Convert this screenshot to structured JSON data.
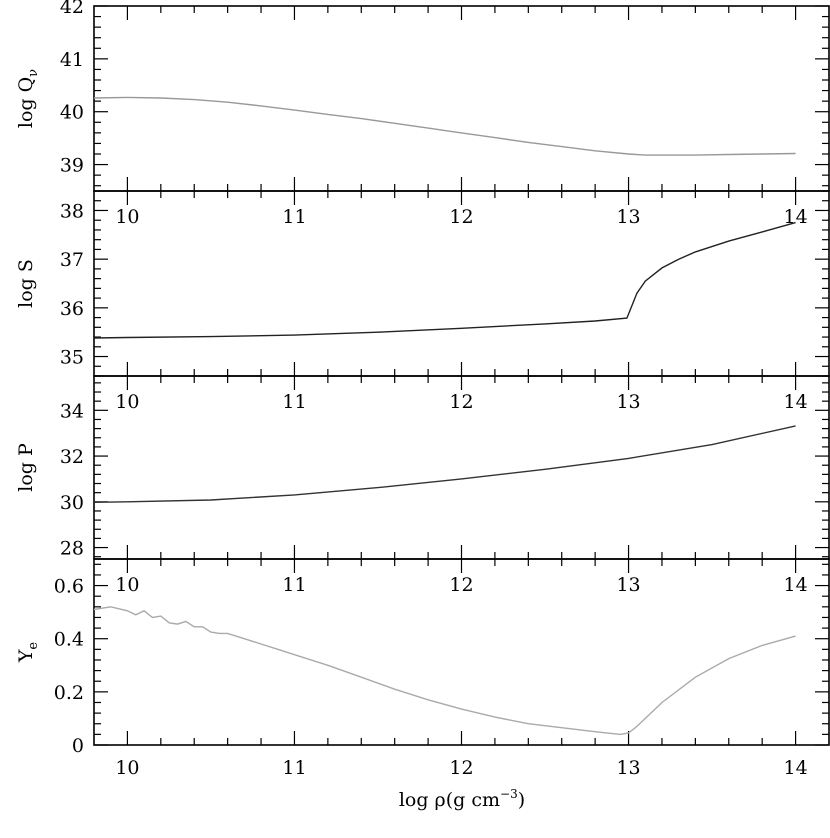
{
  "chart_data": {
    "type": "line",
    "xlabel": "log ρ(g cm⁻³)",
    "xlim": [
      9.8,
      14.2
    ],
    "x_ticks": [
      10,
      11,
      12,
      13,
      14
    ],
    "panels": [
      {
        "ylabel": "log Q_ν",
        "ylabel_main": "log Q",
        "ylabel_sub": "ν",
        "ylim": [
          38.5,
          42
        ],
        "y_ticks": [
          39,
          40,
          41,
          42
        ],
        "color": "#999999",
        "show_x_ticklabels": false,
        "series": [
          {
            "x": [
              9.8,
              10.0,
              10.2,
              10.4,
              10.6,
              10.8,
              11.0,
              11.2,
              11.4,
              11.6,
              11.8,
              12.0,
              12.2,
              12.4,
              12.6,
              12.8,
              13.0,
              13.1,
              13.2,
              13.4,
              13.6,
              13.8,
              14.0
            ],
            "y": [
              40.26,
              40.27,
              40.26,
              40.23,
              40.18,
              40.11,
              40.03,
              39.95,
              39.87,
              39.78,
              39.69,
              39.6,
              39.51,
              39.42,
              39.34,
              39.26,
              39.2,
              39.18,
              39.18,
              39.18,
              39.19,
              39.2,
              39.21
            ]
          }
        ]
      },
      {
        "ylabel": "log S",
        "ylim": [
          34.6,
          38.4
        ],
        "y_ticks": [
          35,
          36,
          37,
          38
        ],
        "color": "#222222",
        "show_x_ticklabels": true,
        "series": [
          {
            "x": [
              9.8,
              10.0,
              10.5,
              11.0,
              11.5,
              12.0,
              12.5,
              12.8,
              12.99,
              13.05,
              13.1,
              13.2,
              13.3,
              13.4,
              13.6,
              13.8,
              14.0
            ],
            "y": [
              35.38,
              35.39,
              35.41,
              35.44,
              35.5,
              35.58,
              35.67,
              35.73,
              35.79,
              36.3,
              36.55,
              36.82,
              37.0,
              37.15,
              37.37,
              37.56,
              37.75
            ]
          }
        ]
      },
      {
        "ylabel": "log P",
        "ylim": [
          27.5,
          35.5
        ],
        "y_ticks": [
          28,
          30,
          32,
          34
        ],
        "color": "#333333",
        "show_x_ticklabels": true,
        "series": [
          {
            "x": [
              9.8,
              10.0,
              10.5,
              11.0,
              11.5,
              12.0,
              12.5,
              13.0,
              13.5,
              14.0
            ],
            "y": [
              29.98,
              30.0,
              30.08,
              30.3,
              30.62,
              31.0,
              31.42,
              31.9,
              32.5,
              33.32
            ]
          }
        ]
      },
      {
        "ylabel": "Y_e",
        "ylabel_main": "Y",
        "ylabel_sub": "e",
        "ylim": [
          0,
          0.7
        ],
        "y_ticks": [
          0,
          0.2,
          0.4,
          0.6
        ],
        "y_ticklabels": [
          "0",
          "0.2",
          "0.4",
          "0.6"
        ],
        "color": "#aaaaaa",
        "show_x_ticklabels": true,
        "series": [
          {
            "x": [
              9.8,
              9.9,
              10.0,
              10.05,
              10.1,
              10.15,
              10.2,
              10.25,
              10.3,
              10.35,
              10.4,
              10.45,
              10.5,
              10.55,
              10.6,
              10.7,
              10.8,
              10.9,
              11.0,
              11.2,
              11.4,
              11.6,
              11.8,
              12.0,
              12.2,
              12.4,
              12.6,
              12.8,
              12.95,
              13.0,
              13.05,
              13.2,
              13.4,
              13.6,
              13.8,
              14.0
            ],
            "y": [
              0.51,
              0.52,
              0.505,
              0.49,
              0.505,
              0.48,
              0.485,
              0.46,
              0.455,
              0.465,
              0.445,
              0.445,
              0.425,
              0.42,
              0.42,
              0.4,
              0.38,
              0.36,
              0.34,
              0.3,
              0.255,
              0.21,
              0.17,
              0.135,
              0.105,
              0.08,
              0.065,
              0.05,
              0.04,
              0.045,
              0.07,
              0.16,
              0.255,
              0.325,
              0.375,
              0.41
            ]
          }
        ]
      }
    ]
  }
}
